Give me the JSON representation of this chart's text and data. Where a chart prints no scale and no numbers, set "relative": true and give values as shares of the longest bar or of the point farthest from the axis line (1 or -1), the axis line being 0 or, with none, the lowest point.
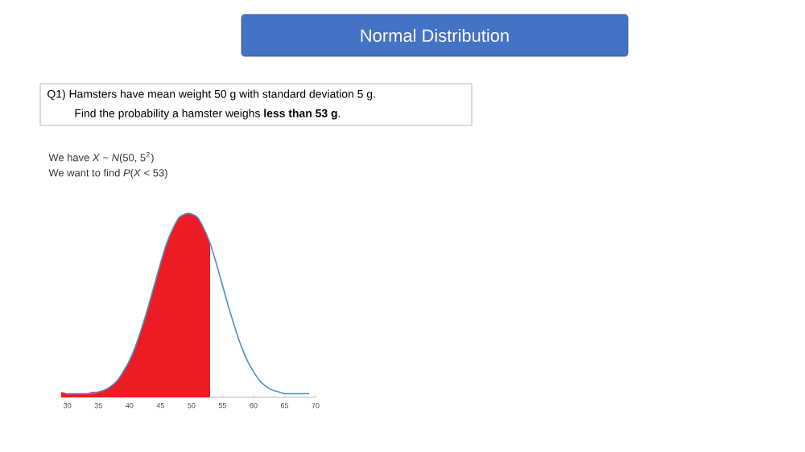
{
  "chart_data": {
    "type": "line",
    "title": "Normal Distribution",
    "relative": true,
    "xlim": [
      29,
      70
    ],
    "xticks": [
      30,
      35,
      40,
      45,
      50,
      55,
      60,
      65,
      70
    ],
    "grid": false,
    "marker": "none",
    "annotations": [
      "Q1) Hamsters have mean weight 50 g with standard deviation 5 g.",
      "Find the probability a hamster weighs **less than 53 g**.",
      "We have *X* ~ *N*(50, 5$^{2}$)",
      "We want to find *P*(*X* < 53)"
    ],
    "series": [
      {
        "type": "area",
        "color": "#ed1c24",
        "x": [
          29,
          30,
          31,
          32,
          33,
          34,
          35,
          36,
          37,
          38,
          39,
          40,
          41,
          42,
          43,
          44,
          45,
          46,
          47,
          48,
          49,
          50,
          51,
          52,
          53
        ],
        "values": [
          0.03,
          0.02,
          0.02,
          0.02,
          0.02,
          0.03,
          0.03,
          0.04,
          0.06,
          0.09,
          0.14,
          0.2,
          0.28,
          0.38,
          0.49,
          0.61,
          0.73,
          0.84,
          0.92,
          0.98,
          1.0,
          1.0,
          0.98,
          0.92,
          0.84
        ]
      },
      {
        "color": "#4a90c4",
        "x": [
          30,
          32,
          34,
          35,
          36,
          37,
          38,
          39,
          40,
          41,
          42,
          43,
          44,
          45,
          46,
          47,
          48,
          49,
          50,
          51,
          52,
          53,
          54,
          55,
          56,
          57,
          58,
          59,
          60,
          61,
          62,
          63,
          64,
          65,
          66,
          67,
          68,
          69
        ],
        "values": [
          0.02,
          0.02,
          0.02,
          0.03,
          0.04,
          0.06,
          0.09,
          0.14,
          0.2,
          0.28,
          0.38,
          0.49,
          0.61,
          0.73,
          0.84,
          0.92,
          0.98,
          1.0,
          1.0,
          0.98,
          0.92,
          0.84,
          0.73,
          0.61,
          0.49,
          0.38,
          0.28,
          0.2,
          0.14,
          0.09,
          0.06,
          0.04,
          0.03,
          0.02,
          0.02,
          0.02,
          0.02,
          0.02
        ]
      }
    ]
  }
}
